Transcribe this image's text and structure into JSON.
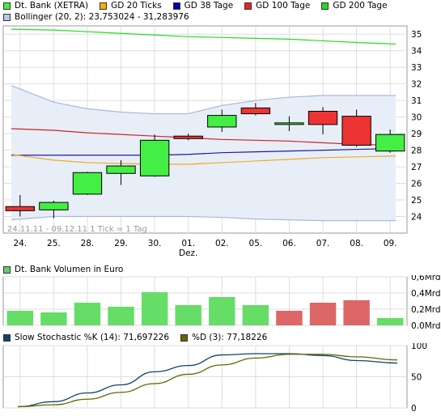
{
  "legend_top": [
    {
      "label": "Dt. Bank (XETRA)",
      "color": "#44ee44"
    },
    {
      "label": "GD 20 Ticks",
      "color": "#ffaa00"
    },
    {
      "label": "GD 38 Tage",
      "color": "#0000aa"
    },
    {
      "label": "GD 100 Tage",
      "color": "#ee2222"
    },
    {
      "label": "GD 200 Tage",
      "color": "#22dd22"
    }
  ],
  "legend_bollinger": {
    "label": "Bollinger (20, 2): 23,753024 - 31,283976",
    "color": "#b8c8e8"
  },
  "legend_volume": {
    "label": "Dt. Bank Volumen in Euro",
    "color": "#66cc66"
  },
  "legend_stoch": [
    {
      "label": "Slow Stochastic %K (14): 71,697226",
      "color": "#114466"
    },
    {
      "label": "%D (3): 77,18226",
      "color": "#666600"
    }
  ],
  "range_note": "24.11.11 - 09.12.11   1 Tick = 1 Tag",
  "chart_data": [
    {
      "type": "candlestick",
      "x_ticks": [
        "24.",
        "25.",
        "28.",
        "29.",
        "30.",
        "01.",
        "02.",
        "05.",
        "06.",
        "07.",
        "08.",
        "09."
      ],
      "x_sublabel": {
        "index": 5,
        "text": "Dez."
      },
      "ylim": [
        23,
        35.5
      ],
      "y_ticks": [
        24,
        25,
        26,
        27,
        28,
        29,
        30,
        31,
        32,
        33,
        34,
        35
      ],
      "candles": [
        {
          "open": 24.6,
          "close": 24.35,
          "high": 25.3,
          "low": 24.0
        },
        {
          "open": 24.4,
          "close": 24.85,
          "high": 24.95,
          "low": 23.9
        },
        {
          "open": 25.35,
          "close": 26.65,
          "high": 26.7,
          "low": 25.3
        },
        {
          "open": 26.6,
          "close": 27.05,
          "high": 27.4,
          "low": 25.9
        },
        {
          "open": 26.45,
          "close": 28.6,
          "high": 28.95,
          "low": 26.4
        },
        {
          "open": 28.85,
          "close": 28.7,
          "high": 29.0,
          "low": 28.6
        },
        {
          "open": 29.4,
          "close": 30.1,
          "high": 30.45,
          "low": 29.1
        },
        {
          "open": 30.55,
          "close": 30.2,
          "high": 30.85,
          "low": 30.1
        },
        {
          "open": 29.6,
          "close": 29.65,
          "high": 30.05,
          "low": 29.15
        },
        {
          "open": 30.35,
          "close": 29.55,
          "high": 30.6,
          "low": 28.95
        },
        {
          "open": 30.05,
          "close": 28.3,
          "high": 30.45,
          "low": 28.2
        },
        {
          "open": 27.95,
          "close": 28.95,
          "high": 29.25,
          "low": 27.85
        }
      ],
      "gd200": [
        35.3,
        35.25,
        35.15,
        35.05,
        34.95,
        34.85,
        34.8,
        34.75,
        34.7,
        34.6,
        34.5,
        34.4
      ],
      "gd100": [
        29.3,
        29.2,
        29.05,
        28.95,
        28.85,
        28.75,
        28.65,
        28.6,
        28.55,
        28.45,
        28.35,
        28.3
      ],
      "gd38": [
        27.7,
        27.7,
        27.7,
        27.7,
        27.7,
        27.75,
        27.85,
        27.9,
        27.95,
        28.0,
        28.05,
        28.1
      ],
      "gd20": [
        27.75,
        27.4,
        27.25,
        27.2,
        27.15,
        27.15,
        27.25,
        27.35,
        27.45,
        27.55,
        27.6,
        27.65
      ],
      "bollinger_upper": [
        31.9,
        30.9,
        30.5,
        30.3,
        30.2,
        30.2,
        30.7,
        31.0,
        31.2,
        31.3,
        31.3,
        31.3
      ],
      "bollinger_lower": [
        23.8,
        24.0,
        24.0,
        24.0,
        24.0,
        24.0,
        23.95,
        23.85,
        23.8,
        23.75,
        23.75,
        23.75
      ]
    },
    {
      "type": "bar",
      "title": "Dt. Bank Volumen in Euro",
      "unit": "Mrd",
      "ylim": [
        0,
        0.6
      ],
      "y_tick_labels": [
        "0,6Mrd",
        "0,4Mrd",
        "0,2Mrd",
        "0,0Mrd"
      ],
      "values": [
        0.18,
        0.16,
        0.28,
        0.23,
        0.41,
        0.25,
        0.35,
        0.25,
        0.18,
        0.28,
        0.31,
        0.09
      ],
      "colors": [
        "#66dd66",
        "#66dd66",
        "#66dd66",
        "#66dd66",
        "#66dd66",
        "#66dd66",
        "#66dd66",
        "#66dd66",
        "#dd6666",
        "#dd6666",
        "#dd6666",
        "#66dd66"
      ]
    },
    {
      "type": "line",
      "title": "Slow Stochastic",
      "ylim": [
        0,
        100
      ],
      "y_ticks": [
        0,
        50,
        100
      ],
      "x": [
        0,
        1,
        2,
        3,
        4,
        5,
        6,
        7,
        8,
        9,
        10,
        11
      ],
      "series": [
        {
          "name": "Slow Stochastic %K (14): 71,697226",
          "color": "#114466",
          "values": [
            2,
            10,
            24,
            37,
            58,
            68,
            85,
            87,
            87,
            84,
            76,
            72
          ]
        },
        {
          "name": "%D (3): 77,18226",
          "color": "#666600",
          "values": [
            2,
            5,
            14,
            25,
            39,
            54,
            69,
            80,
            86,
            86,
            82,
            77
          ]
        }
      ]
    }
  ]
}
